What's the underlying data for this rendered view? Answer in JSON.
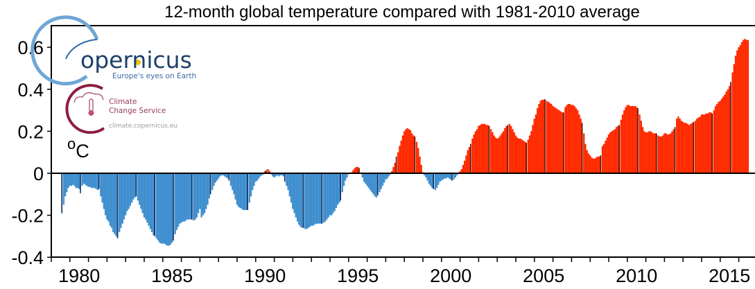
{
  "chart_data": {
    "type": "bar",
    "title": "12-month global temperature compared with 1981-2010 average",
    "ylabel": "°C",
    "xlabel": "",
    "ylim": [
      -0.4,
      0.7
    ],
    "xlim": [
      1979,
      2016.9
    ],
    "yticks": [
      "-0.4",
      "-0.2",
      "0",
      "0.2",
      "0.4",
      "0.6"
    ],
    "xticks": [
      "1980",
      "1985",
      "1990",
      "1995",
      "2000",
      "2005",
      "2010",
      "2015"
    ],
    "grid": false,
    "legend": "none",
    "colors": {
      "positive": "#ff2a00",
      "negative": "#3f8fcf",
      "positive_july": "#5a0a00",
      "negative_july": "#0b2c5c"
    },
    "series": [
      {
        "year": 1979,
        "start_month": 7,
        "values": [
          -0.19,
          -0.15,
          -0.11,
          -0.09,
          -0.07,
          -0.06
        ]
      },
      {
        "year": 1980,
        "values": [
          -0.06,
          -0.055,
          -0.06,
          -0.07,
          -0.07,
          -0.075,
          -0.095,
          -0.06,
          -0.05,
          -0.055,
          -0.06,
          -0.065
        ]
      },
      {
        "year": 1981,
        "values": [
          -0.065,
          -0.07,
          -0.07,
          -0.07,
          -0.075,
          -0.08,
          -0.075,
          -0.11,
          -0.14,
          -0.17,
          -0.2,
          -0.22
        ]
      },
      {
        "year": 1982,
        "values": [
          -0.23,
          -0.25,
          -0.26,
          -0.28,
          -0.29,
          -0.3,
          -0.31,
          -0.28,
          -0.26,
          -0.24,
          -0.22,
          -0.2
        ]
      },
      {
        "year": 1983,
        "values": [
          -0.18,
          -0.17,
          -0.155,
          -0.14,
          -0.125,
          -0.115,
          -0.11,
          -0.13,
          -0.15,
          -0.17,
          -0.19,
          -0.21
        ]
      },
      {
        "year": 1984,
        "values": [
          -0.22,
          -0.235,
          -0.25,
          -0.265,
          -0.28,
          -0.295,
          -0.3,
          -0.31,
          -0.32,
          -0.33,
          -0.335,
          -0.335
        ]
      },
      {
        "year": 1985,
        "values": [
          -0.335,
          -0.34,
          -0.345,
          -0.345,
          -0.34,
          -0.33,
          -0.32,
          -0.29,
          -0.27,
          -0.255,
          -0.24,
          -0.235
        ]
      },
      {
        "year": 1986,
        "values": [
          -0.23,
          -0.23,
          -0.225,
          -0.22,
          -0.22,
          -0.22,
          -0.22,
          -0.225,
          -0.22,
          -0.21,
          -0.19,
          -0.17
        ]
      },
      {
        "year": 1987,
        "values": [
          -0.21,
          -0.2,
          -0.19,
          -0.17,
          -0.15,
          -0.12,
          -0.1,
          -0.08,
          -0.06,
          -0.045,
          -0.035,
          -0.025
        ]
      },
      {
        "year": 1988,
        "values": [
          -0.015,
          -0.01,
          -0.01,
          -0.015,
          -0.02,
          -0.025,
          -0.035,
          -0.06,
          -0.08,
          -0.1,
          -0.125,
          -0.15
        ]
      },
      {
        "year": 1989,
        "values": [
          -0.16,
          -0.165,
          -0.17,
          -0.175,
          -0.175,
          -0.175,
          -0.175,
          -0.14,
          -0.11,
          -0.08,
          -0.06,
          -0.04
        ]
      },
      {
        "year": 1990,
        "values": [
          -0.035,
          -0.025,
          -0.015,
          -0.01,
          -0.005,
          0.01,
          0.015,
          0.02,
          0.01,
          -0.005,
          -0.015,
          -0.02
        ]
      },
      {
        "year": 1991,
        "values": [
          -0.015,
          -0.01,
          -0.015,
          -0.01,
          -0.01,
          -0.015,
          -0.04,
          -0.06,
          -0.08,
          -0.11,
          -0.14,
          -0.17
        ]
      },
      {
        "year": 1992,
        "values": [
          -0.19,
          -0.21,
          -0.23,
          -0.245,
          -0.255,
          -0.26,
          -0.26,
          -0.265,
          -0.265,
          -0.26,
          -0.255,
          -0.25
        ]
      },
      {
        "year": 1993,
        "values": [
          -0.25,
          -0.245,
          -0.24,
          -0.24,
          -0.24,
          -0.24,
          -0.24,
          -0.235,
          -0.23,
          -0.22,
          -0.21,
          -0.2
        ]
      },
      {
        "year": 1994,
        "values": [
          -0.2,
          -0.19,
          -0.18,
          -0.165,
          -0.15,
          -0.14,
          -0.13,
          -0.09,
          -0.06,
          -0.035,
          -0.02,
          -0.005
        ]
      },
      {
        "year": 1995,
        "values": [
          0,
          0.005,
          0.015,
          0.025,
          0.03,
          0.03,
          0.025,
          0.0,
          -0.02,
          -0.04,
          -0.05,
          -0.06
        ]
      },
      {
        "year": 1996,
        "values": [
          -0.07,
          -0.08,
          -0.09,
          -0.1,
          -0.11,
          -0.115,
          -0.105,
          -0.09,
          -0.075,
          -0.06,
          -0.045,
          -0.03
        ]
      },
      {
        "year": 1997,
        "values": [
          -0.025,
          -0.015,
          -0.005,
          0.01,
          0.03,
          0.05,
          0.08,
          0.1,
          0.13,
          0.155,
          0.18,
          0.2
        ]
      },
      {
        "year": 1998,
        "values": [
          0.21,
          0.215,
          0.21,
          0.205,
          0.19,
          0.18,
          0.175,
          0.15,
          0.12,
          0.08,
          0.04,
          0.005
        ]
      },
      {
        "year": 1999,
        "values": [
          -0.01,
          -0.02,
          -0.035,
          -0.05,
          -0.06,
          -0.07,
          -0.075,
          -0.08,
          -0.07,
          -0.055,
          -0.04,
          -0.035
        ]
      },
      {
        "year": 2000,
        "values": [
          -0.03,
          -0.025,
          -0.025,
          -0.02,
          -0.025,
          -0.03,
          -0.035,
          -0.03,
          -0.02,
          -0.01,
          0.0,
          0.01
        ]
      },
      {
        "year": 2001,
        "values": [
          0.02,
          0.04,
          0.06,
          0.085,
          0.11,
          0.125,
          0.14,
          0.165,
          0.185,
          0.2,
          0.21,
          0.225
        ]
      },
      {
        "year": 2002,
        "values": [
          0.23,
          0.235,
          0.235,
          0.235,
          0.23,
          0.23,
          0.225,
          0.21,
          0.195,
          0.18,
          0.17,
          0.165
        ]
      },
      {
        "year": 2003,
        "values": [
          0.17,
          0.18,
          0.19,
          0.2,
          0.215,
          0.225,
          0.23,
          0.235,
          0.225,
          0.21,
          0.195,
          0.18
        ]
      },
      {
        "year": 2004,
        "values": [
          0.17,
          0.165,
          0.165,
          0.16,
          0.155,
          0.15,
          0.145,
          0.16,
          0.18,
          0.2,
          0.23,
          0.26
        ]
      },
      {
        "year": 2005,
        "values": [
          0.28,
          0.31,
          0.33,
          0.345,
          0.35,
          0.35,
          0.353,
          0.345,
          0.34,
          0.335,
          0.33,
          0.32
        ]
      },
      {
        "year": 2006,
        "values": [
          0.315,
          0.31,
          0.305,
          0.3,
          0.295,
          0.29,
          0.29,
          0.315,
          0.325,
          0.33,
          0.33,
          0.325
        ]
      },
      {
        "year": 2007,
        "values": [
          0.325,
          0.32,
          0.31,
          0.3,
          0.28,
          0.26,
          0.24,
          0.19,
          0.14,
          0.11,
          0.095,
          0.085
        ]
      },
      {
        "year": 2008,
        "values": [
          0.075,
          0.07,
          0.07,
          0.075,
          0.08,
          0.08,
          0.085,
          0.13,
          0.14,
          0.155,
          0.17,
          0.185
        ]
      },
      {
        "year": 2009,
        "values": [
          0.195,
          0.2,
          0.205,
          0.21,
          0.22,
          0.225,
          0.23,
          0.255,
          0.28,
          0.3,
          0.315,
          0.325
        ]
      },
      {
        "year": 2010,
        "values": [
          0.325,
          0.32,
          0.32,
          0.32,
          0.32,
          0.315,
          0.31,
          0.28,
          0.25,
          0.22,
          0.2,
          0.195
        ]
      },
      {
        "year": 2011,
        "values": [
          0.195,
          0.2,
          0.2,
          0.195,
          0.19,
          0.19,
          0.19,
          0.18,
          0.175,
          0.175,
          0.18,
          0.19
        ]
      },
      {
        "year": 2012,
        "values": [
          0.19,
          0.185,
          0.185,
          0.19,
          0.2,
          0.21,
          0.22,
          0.26,
          0.27,
          0.26,
          0.25,
          0.245
        ]
      },
      {
        "year": 2013,
        "values": [
          0.24,
          0.24,
          0.235,
          0.23,
          0.235,
          0.24,
          0.245,
          0.25,
          0.26,
          0.265,
          0.27,
          0.28
        ]
      },
      {
        "year": 2014,
        "values": [
          0.28,
          0.28,
          0.285,
          0.285,
          0.29,
          0.29,
          0.285,
          0.3,
          0.32,
          0.33,
          0.34,
          0.345
        ]
      },
      {
        "year": 2015,
        "values": [
          0.355,
          0.365,
          0.375,
          0.39,
          0.4,
          0.415,
          0.435,
          0.48,
          0.52,
          0.56,
          0.585,
          0.6
        ]
      },
      {
        "year": 2016,
        "values": [
          0.61,
          0.625,
          0.635,
          0.64,
          0.635,
          0.635
        ]
      }
    ]
  },
  "logo": {
    "brand": "opernicus",
    "tagline": "Europe's eyes on Earth",
    "service_line1": "Climate",
    "service_line2": "Change Service",
    "url": "climate.copernicus.eu"
  }
}
